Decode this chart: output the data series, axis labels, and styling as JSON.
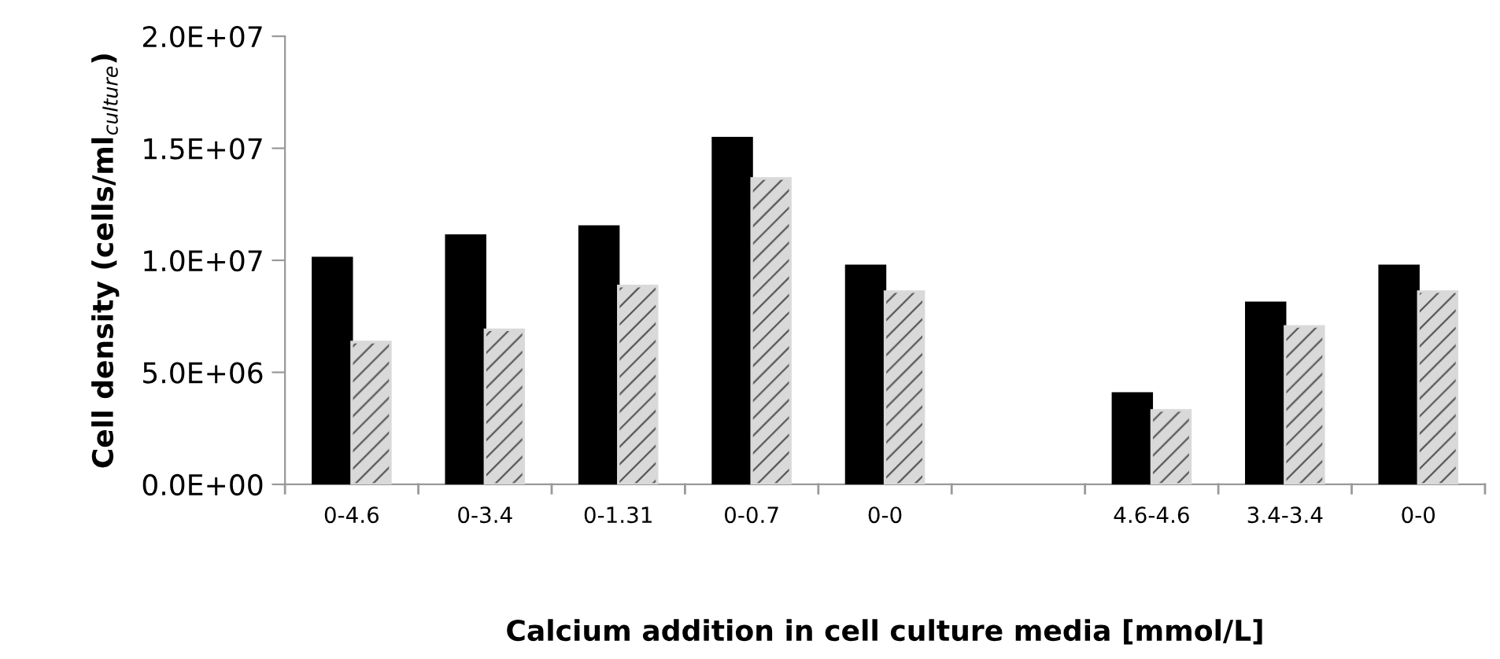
{
  "chart_data": {
    "type": "bar",
    "xlabel": "Calcium addition in cell culture media [mmol/L]",
    "ylabel": "Cell density (cells/ml$_{culture}$)",
    "categories": [
      "0-4.6",
      "0-3.4",
      "0-1.31",
      "0-0.7",
      "0-0",
      null,
      "4.6-4.6",
      "3.4-3.4",
      "0-0"
    ],
    "series": [
      {
        "color": "#000000",
        "values": [
          10100000,
          11100000,
          11500000,
          15450000,
          9750000,
          null,
          4050000,
          8100000,
          9750000
        ]
      },
      {
        "color": "#d9d9d9",
        "values": [
          6350000,
          6900000,
          8850000,
          13650000,
          8600000,
          null,
          3300000,
          7050000,
          8600000
        ]
      }
    ],
    "ylim": [
      0,
      20000000
    ],
    "yticks": [
      {
        "value": 0,
        "label": "0.0E+00"
      },
      {
        "value": 5000000,
        "label": "5.0E+06"
      },
      {
        "value": 10000000,
        "label": "1.0E+07"
      },
      {
        "value": 15000000,
        "label": "1.5E+07"
      },
      {
        "value": 20000000,
        "label": "2.0E+07"
      }
    ],
    "grid": false
  }
}
